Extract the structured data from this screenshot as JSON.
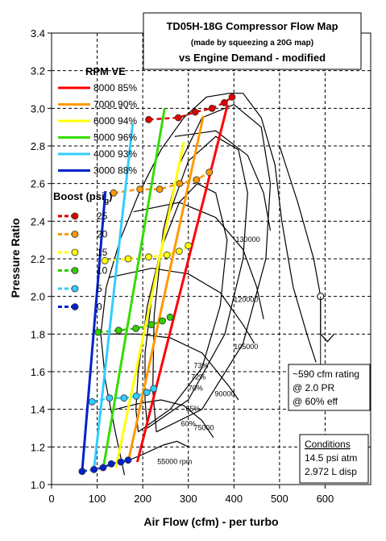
{
  "chart_data": {
    "type": "line",
    "title": "TD05H-18G Compressor Flow Map",
    "subtitle": "(made by squeezing a 20G map)",
    "subtitle2": "vs Engine Demand - modified",
    "xlabel": "Air Flow (cfm) - per turbo",
    "ylabel": "Pressure Ratio",
    "xlim": [
      0,
      700
    ],
    "ylim": [
      1.0,
      3.4
    ],
    "xticks": [
      "0",
      "100",
      "200",
      "300",
      "400",
      "500",
      "600"
    ],
    "yticks": [
      "1.0",
      "1.2",
      "1.4",
      "1.6",
      "1.8",
      "2.0",
      "2.2",
      "2.4",
      "2.6",
      "2.8",
      "3.0",
      "3.2",
      "3.4"
    ],
    "grid": "dashed",
    "rpm_legend": {
      "header": "RPM  VE",
      "items": [
        {
          "label": "8000  85%",
          "color": "#ff0000"
        },
        {
          "label": "7000  90%",
          "color": "#ff9900"
        },
        {
          "label": "6000  94%",
          "color": "#ffff00"
        },
        {
          "label": "5000  96%",
          "color": "#33dd00"
        },
        {
          "label": "4000  93%",
          "color": "#33ccff"
        },
        {
          "label": "3000  88%",
          "color": "#0022cc"
        }
      ]
    },
    "boost_legend": {
      "header": "Boost (psi",
      "header_sub": "g",
      "header_end": ")",
      "items": [
        {
          "label": "25",
          "color": "#dd0000"
        },
        {
          "label": "20",
          "color": "#ff9900"
        },
        {
          "label": "15",
          "color": "#ffff00"
        },
        {
          "label": "10",
          "color": "#33cc00"
        },
        {
          "label": "5",
          "color": "#33ccff"
        },
        {
          "label": "0",
          "color": "#0022cc"
        }
      ]
    },
    "rpm_series": [
      {
        "rpm": "3000",
        "color": "#0022cc",
        "points": [
          [
            67,
            1.07
          ],
          [
            118,
            2.56
          ]
        ]
      },
      {
        "rpm": "4000",
        "color": "#33ccff",
        "points": [
          [
            93,
            1.08
          ],
          [
            178,
            2.92
          ]
        ]
      },
      {
        "rpm": "5000",
        "color": "#33dd00",
        "points": [
          [
            113,
            1.08
          ],
          [
            248,
            3.0
          ]
        ]
      },
      {
        "rpm": "6000",
        "color": "#ffff00",
        "points": [
          [
            141,
            1.09
          ],
          [
            290,
            2.82
          ]
        ]
      },
      {
        "rpm": "7000",
        "color": "#ff9900",
        "points": [
          [
            168,
            1.12
          ],
          [
            333,
            2.96
          ]
        ]
      },
      {
        "rpm": "8000",
        "color": "#ff0000",
        "points": [
          [
            188,
            1.12
          ],
          [
            386,
            3.02
          ]
        ]
      }
    ],
    "boost_series": [
      {
        "psi": "0",
        "color": "#0022cc",
        "points": [
          [
            67,
            1.07
          ],
          [
            93,
            1.08
          ],
          [
            113,
            1.09
          ],
          [
            131,
            1.11
          ],
          [
            152,
            1.12
          ],
          [
            168,
            1.13
          ]
        ]
      },
      {
        "psi": "5",
        "color": "#33ccff",
        "points": [
          [
            89,
            1.44
          ],
          [
            127,
            1.46
          ],
          [
            159,
            1.46
          ],
          [
            186,
            1.47
          ],
          [
            209,
            1.49
          ],
          [
            224,
            1.51
          ]
        ]
      },
      {
        "psi": "10",
        "color": "#33cc00",
        "points": [
          [
            102,
            1.81
          ],
          [
            147,
            1.82
          ],
          [
            185,
            1.83
          ],
          [
            219,
            1.85
          ],
          [
            243,
            1.87
          ],
          [
            260,
            1.89
          ]
        ]
      },
      {
        "psi": "15",
        "color": "#ffff00",
        "points": [
          [
            117,
            2.19
          ],
          [
            168,
            2.2
          ],
          [
            213,
            2.21
          ],
          [
            253,
            2.22
          ],
          [
            280,
            2.24
          ],
          [
            300,
            2.27
          ]
        ]
      },
      {
        "psi": "20",
        "color": "#ff9900",
        "points": [
          [
            136,
            2.55
          ],
          [
            194,
            2.57
          ],
          [
            237,
            2.57
          ],
          [
            281,
            2.6
          ],
          [
            318,
            2.62
          ],
          [
            346,
            2.66
          ]
        ]
      },
      {
        "psi": "25",
        "color": "#dd0000",
        "points": [
          [
            213,
            2.94
          ],
          [
            278,
            2.95
          ],
          [
            315,
            2.98
          ],
          [
            352,
            3.0
          ],
          [
            379,
            3.03
          ],
          [
            396,
            3.06
          ]
        ]
      }
    ],
    "map_labels": {
      "speed_55000": "55000 rpm",
      "speed_75000": "75000",
      "speed_90000": "90000",
      "speed_105000": "105000",
      "speed_120000": "120000",
      "speed_130000": "130000",
      "eff_60": "60%",
      "eff_65": "65%",
      "eff_70": "70%",
      "eff_72": "72%",
      "eff_73": "73%"
    },
    "annotations": {
      "rating_point": [
        590,
        2.0
      ],
      "rating_lines": [
        "~590 cfm rating",
        "@ 2.0 PR",
        "@ 60% eff"
      ],
      "conditions_head": "Conditions",
      "conditions_lines": [
        "14.5 psi atm",
        "2.972 L disp"
      ]
    }
  }
}
